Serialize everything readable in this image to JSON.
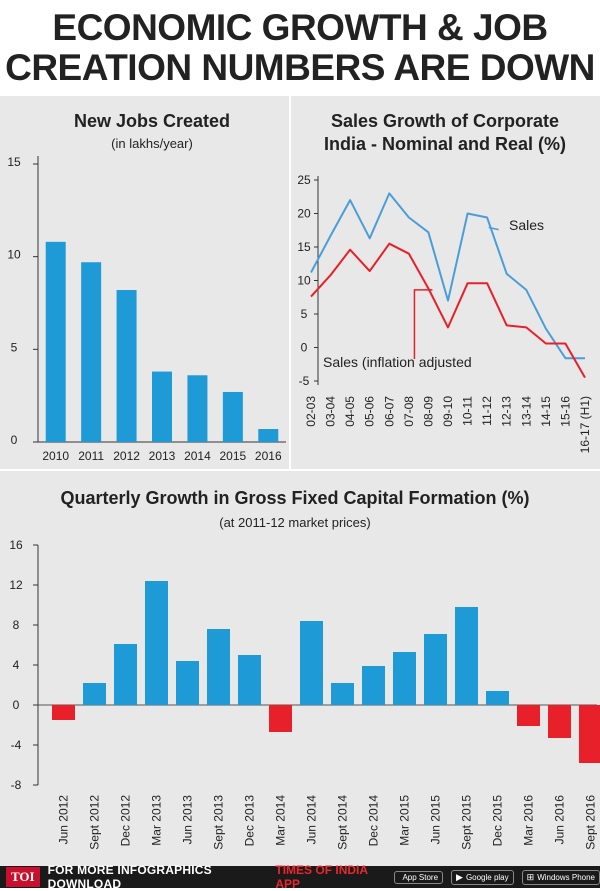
{
  "title": {
    "line1": "ECONOMIC GROWTH & JOB",
    "line2": "CREATION NUMBERS ARE DOWN"
  },
  "colors": {
    "blue": "#1e9ad6",
    "blue_line": "#4a9ed8",
    "red": "#e8202a",
    "panel_bg": "#e8e8e8"
  },
  "chart_data": [
    {
      "type": "bar",
      "title": "New Jobs Created",
      "subtitle": "(in lakhs/year)",
      "categories": [
        "2010",
        "2011",
        "2012",
        "2013",
        "2014",
        "2015",
        "2016"
      ],
      "values": [
        10.8,
        9.7,
        8.2,
        3.8,
        3.6,
        2.7,
        0.7
      ],
      "ylim": [
        0,
        15
      ],
      "yticks": [
        "0",
        "5",
        "10",
        "15"
      ],
      "grid": false
    },
    {
      "type": "line",
      "title_line1": "Sales Growth of Corporate",
      "title_line2": "India - Nominal and Real (%)",
      "x": [
        "02-03",
        "03-04",
        "04-05",
        "05-06",
        "06-07",
        "07-08",
        "08-09",
        "09-10",
        "10-11",
        "11-12",
        "12-13",
        "13-14",
        "14-15",
        "15-16",
        "16-17 (H1)"
      ],
      "series": [
        {
          "name": "Sales",
          "values": [
            11.2,
            16.7,
            22.0,
            16.3,
            23.0,
            19.4,
            17.2,
            7.0,
            20.0,
            19.4,
            11.0,
            8.6,
            2.8,
            -1.6,
            -1.6
          ]
        },
        {
          "name": "Sales (inflation adjusted",
          "values": [
            7.6,
            10.8,
            14.6,
            11.4,
            15.5,
            14.0,
            8.8,
            3.0,
            9.6,
            9.6,
            3.3,
            3.0,
            0.6,
            0.6,
            -4.5
          ]
        }
      ],
      "ylim": [
        -5,
        25
      ],
      "yticks": [
        "-5",
        "0",
        "5",
        "10",
        "15",
        "20",
        "25"
      ],
      "grid": false
    },
    {
      "type": "bar",
      "title": "Quarterly Growth in Gross Fixed Capital Formation (%)",
      "subtitle": "(at 2011-12 market prices)",
      "categories": [
        "Jun 2012",
        "Sept 2012",
        "Dec 2012",
        "Mar 2013",
        "Jun 2013",
        "Sept 2013",
        "Dec 2013",
        "Mar 2014",
        "Jun 2014",
        "Sept 2014",
        "Dec 2014",
        "Mar 2015",
        "Jun 2015",
        "Sept 2015",
        "Dec 2015",
        "Mar 2016",
        "Jun 2016",
        "Sept 2016"
      ],
      "values": [
        -1.5,
        2.2,
        6.1,
        12.4,
        4.4,
        7.6,
        5.0,
        -2.7,
        8.4,
        2.2,
        3.9,
        5.3,
        7.1,
        9.8,
        1.4,
        -2.1,
        -3.3,
        -5.8
      ],
      "ylim": [
        -8,
        16
      ],
      "yticks": [
        "-8",
        "-4",
        "0",
        "4",
        "8",
        "12",
        "16"
      ],
      "grid": false
    }
  ],
  "footer": {
    "logo": "TOI",
    "text": "FOR MORE INFOGRAPHICS DOWNLOAD",
    "brand": "TIMES OF INDIA APP",
    "badges": [
      {
        "icon": "apple-icon",
        "glyph": "",
        "label": "App Store"
      },
      {
        "icon": "google-play-icon",
        "glyph": "▶",
        "label": "Google play"
      },
      {
        "icon": "windows-icon",
        "glyph": "⊞",
        "label": "Windows Phone"
      }
    ]
  }
}
